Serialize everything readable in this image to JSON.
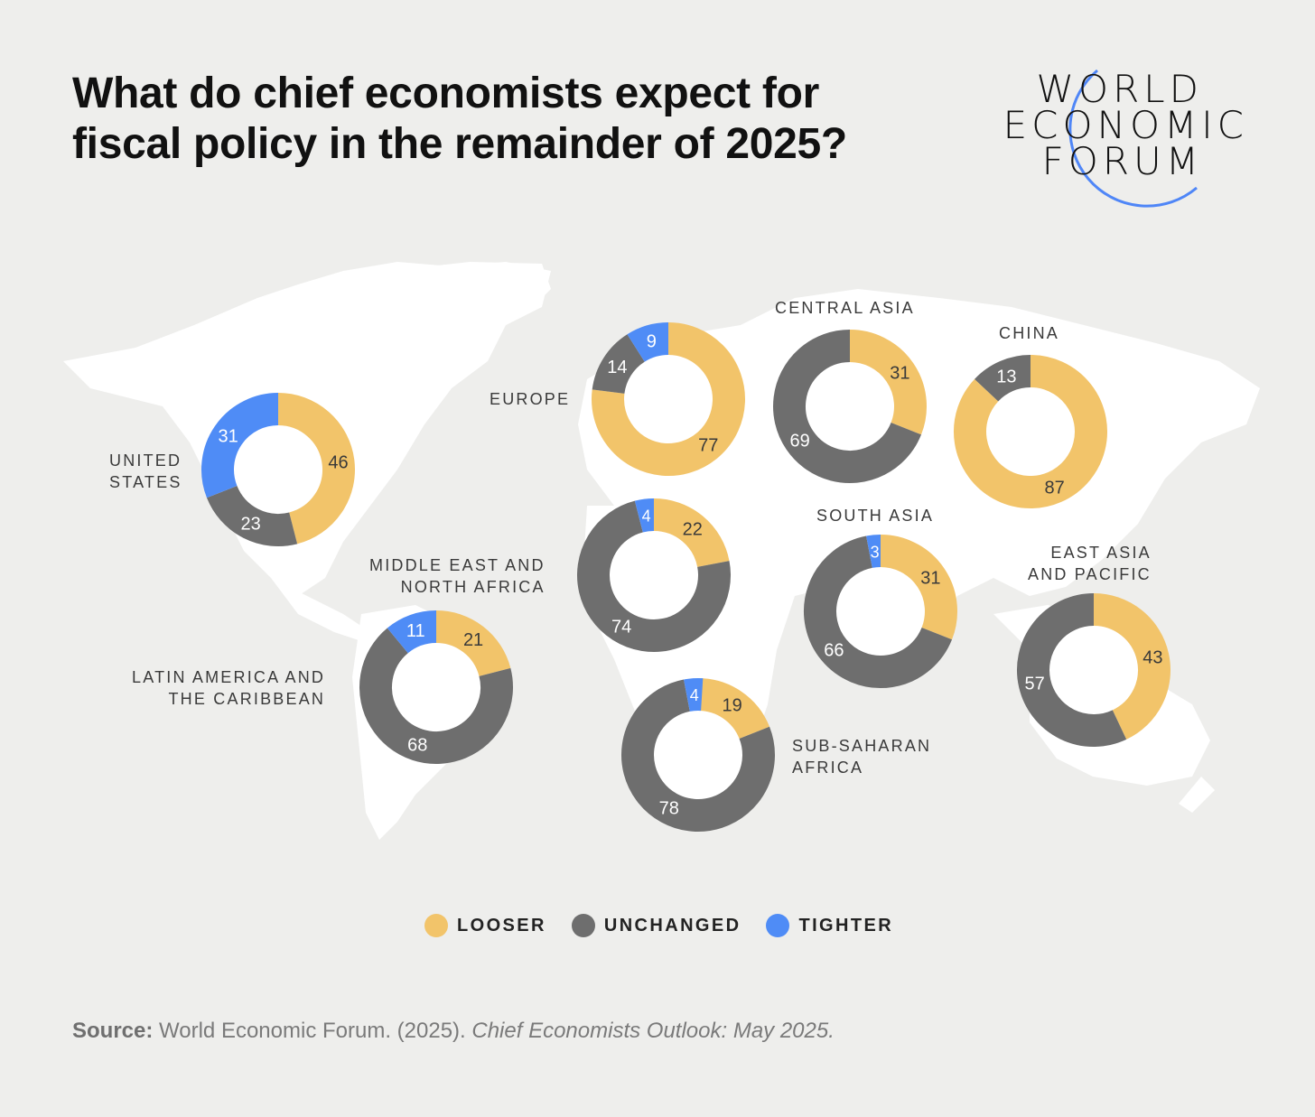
{
  "title_lines": [
    "What do chief economists expect for",
    "fiscal policy in the remainder of 2025?"
  ],
  "logo": {
    "lines": [
      "WORLD",
      "ECONOMIC",
      "FORUM"
    ],
    "ring_color": "#4f86f7"
  },
  "colors": {
    "looser": "#f2c46a",
    "unchanged": "#6e6e6e",
    "tighter": "#4f8cf6",
    "background": "#eeeeec",
    "map": "#ffffff"
  },
  "legend": [
    {
      "key": "looser",
      "label": "LOOSER"
    },
    {
      "key": "unchanged",
      "label": "UNCHANGED"
    },
    {
      "key": "tighter",
      "label": "TIGHTER"
    }
  ],
  "source": {
    "prefix": "Source:",
    "text": "World Economic Forum. (2025).",
    "publication": "Chief Economists Outlook: May 2025."
  },
  "chart_data": {
    "type": "pie",
    "subtype": "donut",
    "unit": "% of chief economists",
    "series_order": [
      "looser",
      "unchanged",
      "tighter"
    ],
    "regions": [
      {
        "name": "United States",
        "label_lines": [
          "UNITED",
          "STATES"
        ],
        "looser": 46,
        "unchanged": 23,
        "tighter": 31
      },
      {
        "name": "Europe",
        "label_lines": [
          "EUROPE"
        ],
        "looser": 77,
        "unchanged": 14,
        "tighter": 9
      },
      {
        "name": "Central Asia",
        "label_lines": [
          "CENTRAL ASIA"
        ],
        "looser": 31,
        "unchanged": 69,
        "tighter": 0
      },
      {
        "name": "China",
        "label_lines": [
          "CHINA"
        ],
        "looser": 87,
        "unchanged": 13,
        "tighter": 0
      },
      {
        "name": "Middle East and North Africa",
        "label_lines": [
          "MIDDLE EAST AND",
          "NORTH AFRICA"
        ],
        "looser": 22,
        "unchanged": 74,
        "tighter": 4
      },
      {
        "name": "South Asia",
        "label_lines": [
          "SOUTH ASIA"
        ],
        "looser": 31,
        "unchanged": 66,
        "tighter": 3
      },
      {
        "name": "East Asia and Pacific",
        "label_lines": [
          "EAST ASIA",
          "AND PACIFIC"
        ],
        "looser": 43,
        "unchanged": 57,
        "tighter": 0
      },
      {
        "name": "Latin America and the Caribbean",
        "label_lines": [
          "LATIN AMERICA AND",
          "THE CARIBBEAN"
        ],
        "looser": 21,
        "unchanged": 68,
        "tighter": 11
      },
      {
        "name": "Sub-Saharan Africa",
        "label_lines": [
          "SUB-SAHARAN",
          "AFRICA"
        ],
        "looser": 19,
        "unchanged": 78,
        "tighter": 4
      }
    ]
  }
}
